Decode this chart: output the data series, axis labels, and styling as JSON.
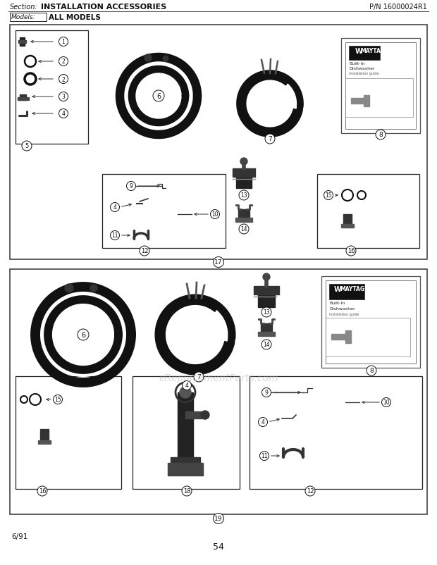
{
  "title_section": "Section:",
  "title_text": "INSTALLATION ACCESSORIES",
  "part_number": "P/N 16000024R1",
  "models_label": "Models:",
  "models_text": "ALL MODELS",
  "page_number": "54",
  "footer_left": "6/91",
  "watermark": "eReplacementParts.com",
  "bg_color": "#ffffff",
  "text_color": "#111111"
}
